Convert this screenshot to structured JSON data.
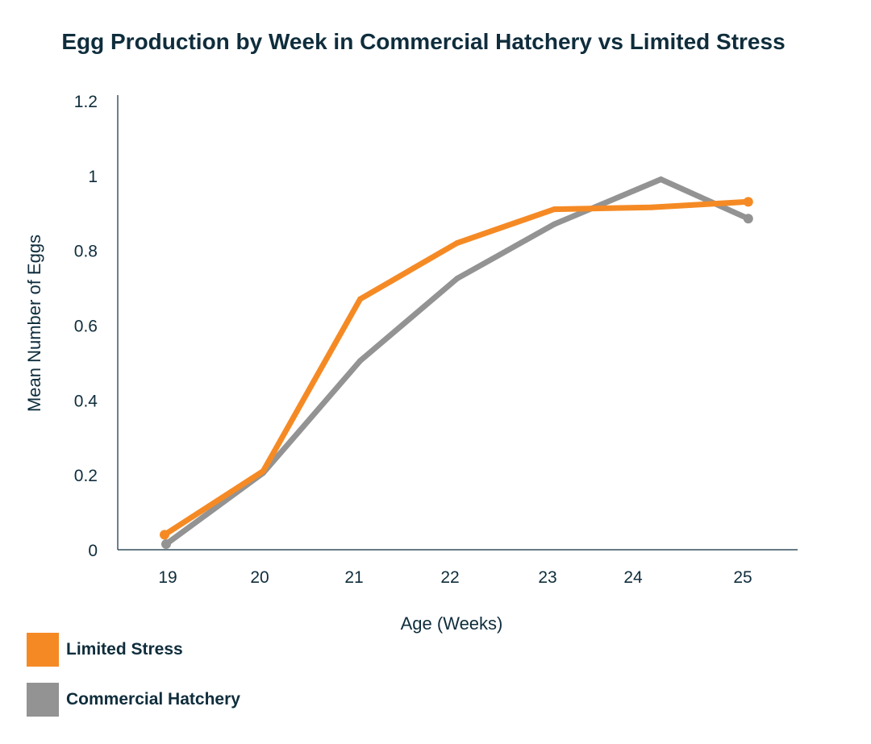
{
  "chart_data": {
    "type": "line",
    "title": "Egg Production by Week in Commercial Hatchery vs Limited Stress",
    "xlabel": "Age (Weeks)",
    "ylabel": "Mean Number of Eggs",
    "x": [
      19,
      20,
      21,
      22,
      23,
      24,
      25
    ],
    "x_ticks": [
      "19",
      "20",
      "21",
      "22",
      "23",
      "24",
      "25"
    ],
    "ylim": [
      0,
      1.2
    ],
    "y_ticks": [
      "0",
      "0.2",
      "0.4",
      "0.6",
      "0.8",
      "1",
      "1.2"
    ],
    "y_tick_values": [
      0,
      0.2,
      0.4,
      0.6,
      0.8,
      1.0,
      1.2
    ],
    "grid": false,
    "legend_position": "bottom-left",
    "series": [
      {
        "name": "Limited Stress",
        "color": "#f58a25",
        "points": [
          {
            "x": 19,
            "y": 0.04
          },
          {
            "x": 20,
            "y": 0.21
          },
          {
            "x": 21,
            "y": 0.67
          },
          {
            "x": 22,
            "y": 0.82
          },
          {
            "x": 23,
            "y": 0.91
          },
          {
            "x": 24,
            "y": 0.915
          },
          {
            "x": 25,
            "y": 0.93
          }
        ]
      },
      {
        "name": "Commercial Hatchery",
        "color": "#939393",
        "points": [
          {
            "x": 19,
            "y": 0.015
          },
          {
            "x": 20,
            "y": 0.205
          },
          {
            "x": 21,
            "y": 0.505
          },
          {
            "x": 22,
            "y": 0.725
          },
          {
            "x": 23,
            "y": 0.87
          },
          {
            "x": 24.1,
            "y": 0.99
          },
          {
            "x": 25,
            "y": 0.885
          }
        ]
      }
    ]
  }
}
